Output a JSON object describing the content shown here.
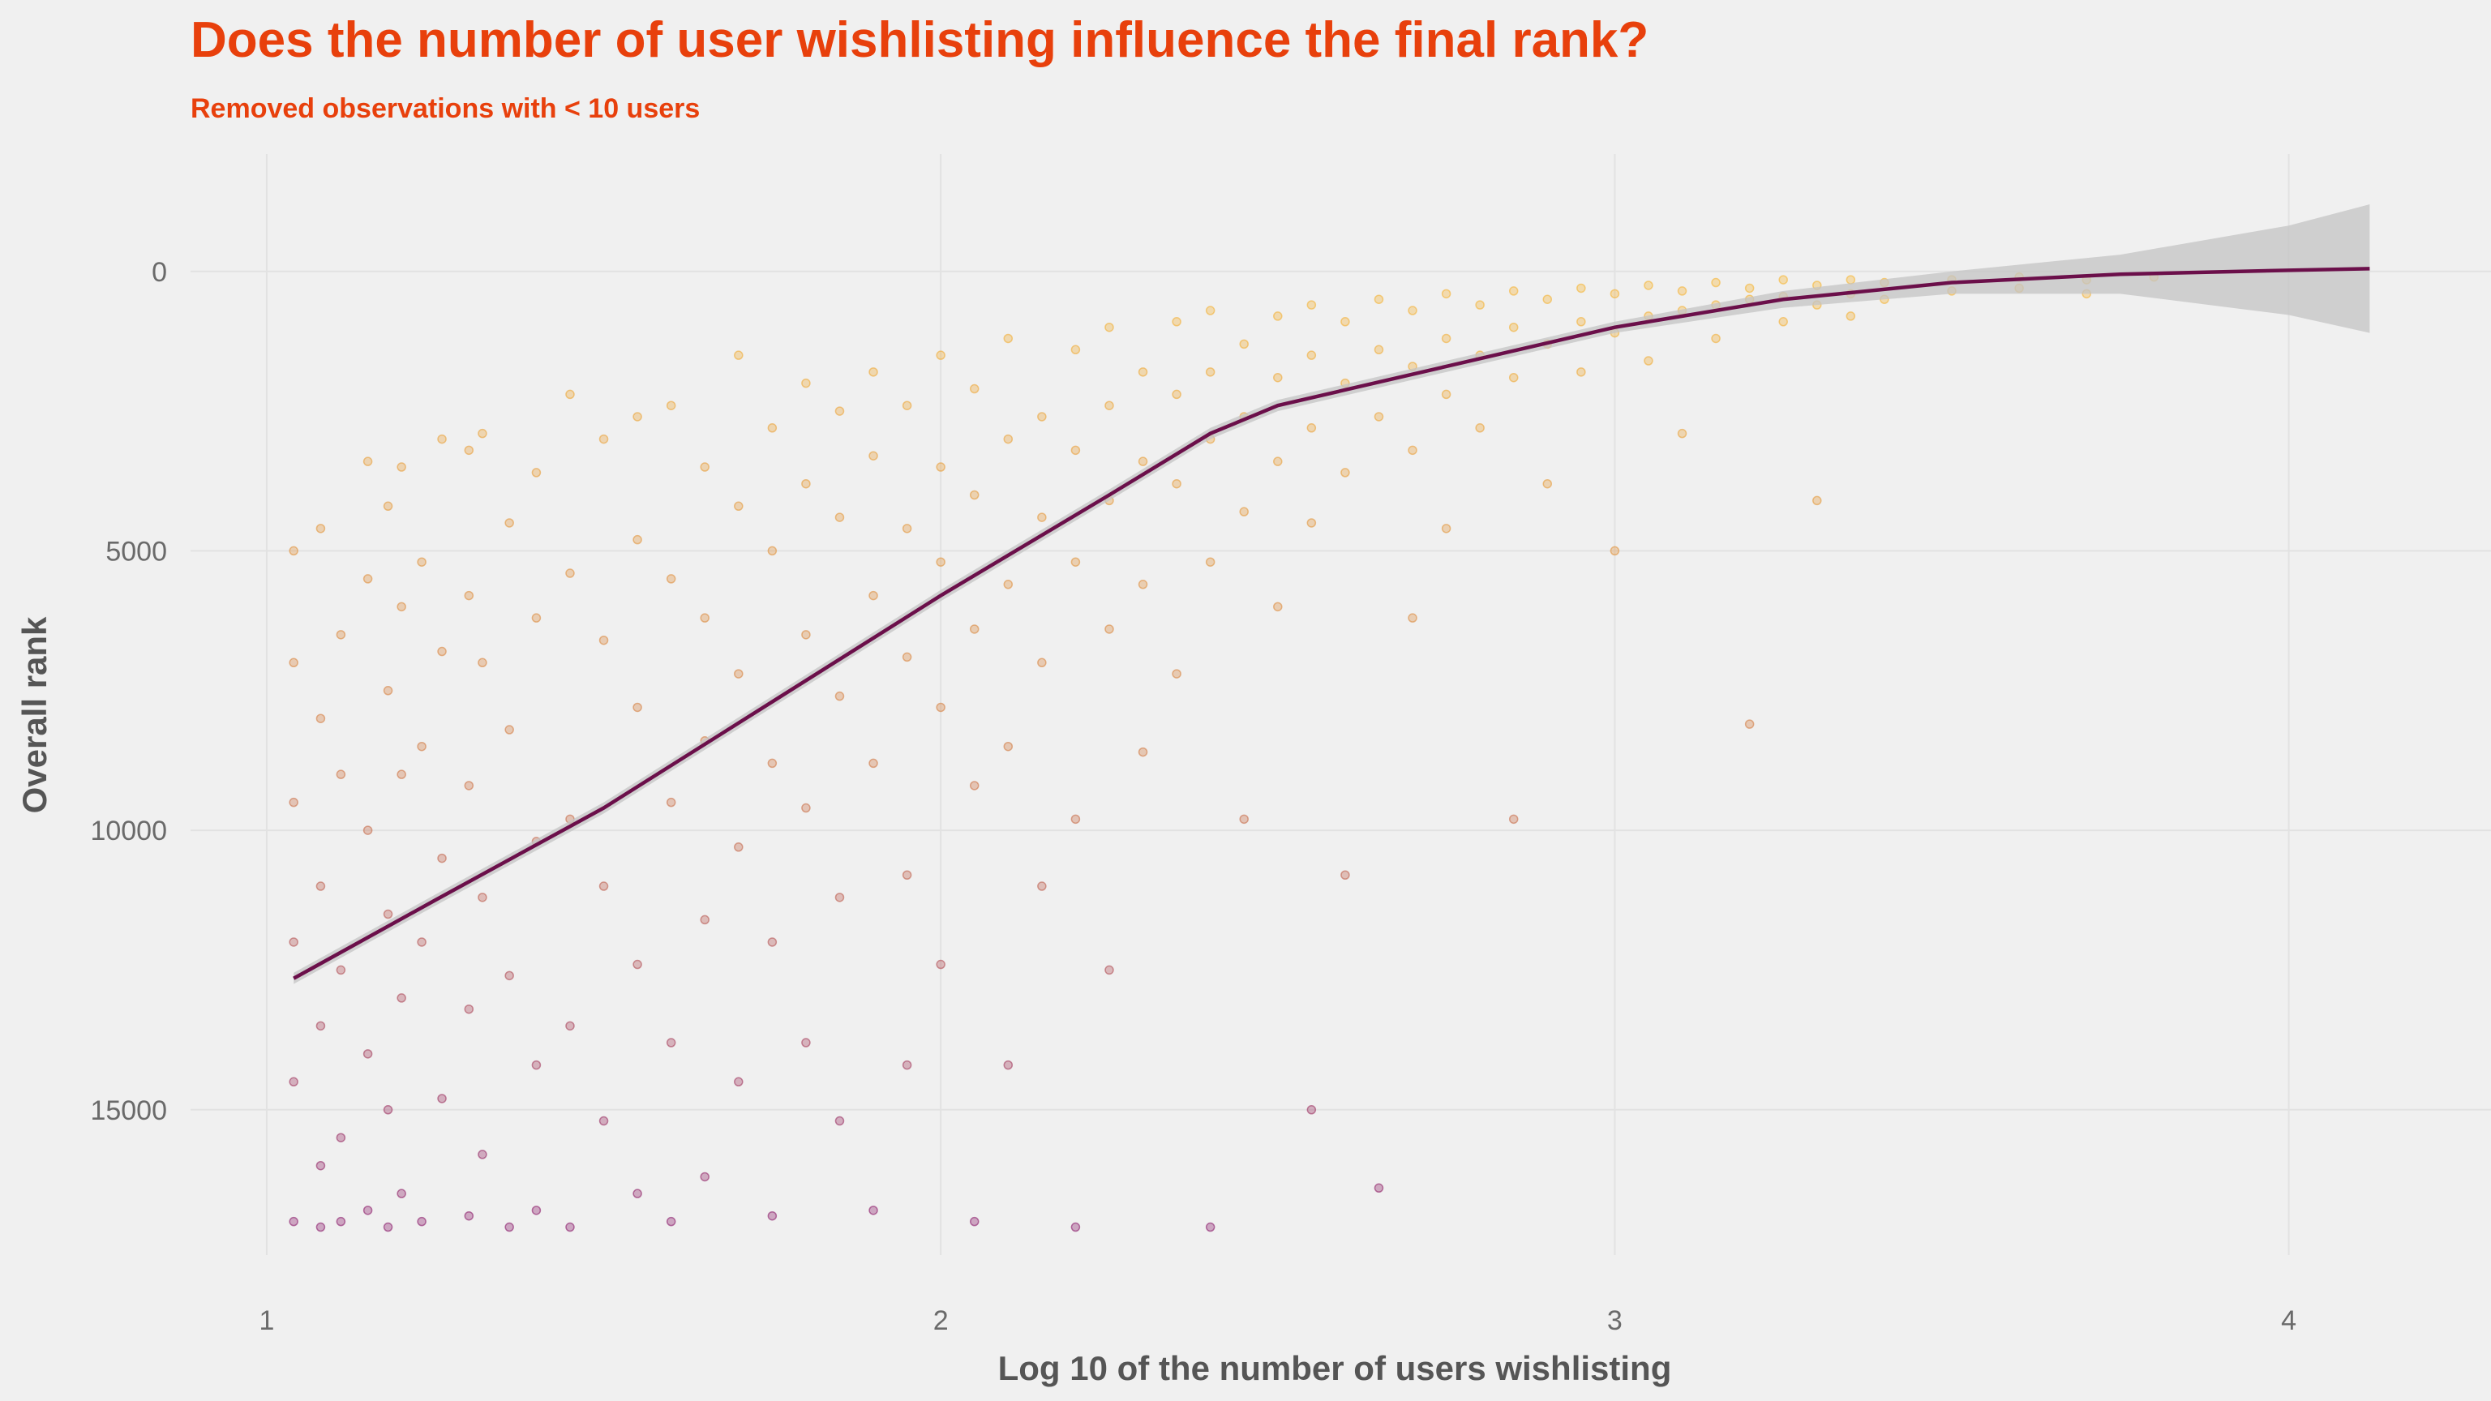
{
  "chart_data": {
    "type": "scatter",
    "title": "Does the number of user wishlisting influence the final rank?",
    "subtitle": "Removed observations with < 10 users",
    "x_label": "Log 10 of the number of users wishlisting",
    "y_label": "Overall rank",
    "xlim": [
      0.887,
      4.3
    ],
    "ylim": [
      -2100,
      17600
    ],
    "y_reversed": true,
    "xticks": [
      1,
      2,
      3,
      4
    ],
    "yticks": [
      0,
      5000,
      10000,
      15000
    ],
    "grid": true,
    "color_scale": [
      "#f6b532",
      "#d27a43",
      "#8a1a6b"
    ],
    "x": [
      1.04,
      1.04,
      1.04,
      1.04,
      1.04,
      1.04,
      1.08,
      1.08,
      1.08,
      1.08,
      1.08,
      1.08,
      1.11,
      1.11,
      1.11,
      1.11,
      1.11,
      1.15,
      1.15,
      1.15,
      1.15,
      1.15,
      1.18,
      1.18,
      1.18,
      1.18,
      1.18,
      1.2,
      1.2,
      1.2,
      1.2,
      1.2,
      1.23,
      1.23,
      1.23,
      1.23,
      1.26,
      1.26,
      1.26,
      1.26,
      1.3,
      1.3,
      1.3,
      1.3,
      1.3,
      1.32,
      1.32,
      1.32,
      1.32,
      1.36,
      1.36,
      1.36,
      1.36,
      1.4,
      1.4,
      1.4,
      1.4,
      1.4,
      1.45,
      1.45,
      1.45,
      1.45,
      1.45,
      1.5,
      1.5,
      1.5,
      1.5,
      1.55,
      1.55,
      1.55,
      1.55,
      1.55,
      1.6,
      1.6,
      1.6,
      1.6,
      1.6,
      1.65,
      1.65,
      1.65,
      1.65,
      1.65,
      1.7,
      1.7,
      1.7,
      1.7,
      1.7,
      1.75,
      1.75,
      1.75,
      1.75,
      1.75,
      1.8,
      1.8,
      1.8,
      1.8,
      1.8,
      1.85,
      1.85,
      1.85,
      1.85,
      1.85,
      1.9,
      1.9,
      1.9,
      1.9,
      1.9,
      1.95,
      1.95,
      1.95,
      1.95,
      1.95,
      2.0,
      2.0,
      2.0,
      2.0,
      2.0,
      2.05,
      2.05,
      2.05,
      2.05,
      2.05,
      2.1,
      2.1,
      2.1,
      2.1,
      2.1,
      2.15,
      2.15,
      2.15,
      2.15,
      2.2,
      2.2,
      2.2,
      2.2,
      2.2,
      2.25,
      2.25,
      2.25,
      2.25,
      2.25,
      2.3,
      2.3,
      2.3,
      2.3,
      2.35,
      2.35,
      2.35,
      2.35,
      2.4,
      2.4,
      2.4,
      2.4,
      2.4,
      2.45,
      2.45,
      2.45,
      2.45,
      2.5,
      2.5,
      2.5,
      2.5,
      2.55,
      2.55,
      2.55,
      2.55,
      2.55,
      2.6,
      2.6,
      2.6,
      2.6,
      2.65,
      2.65,
      2.65,
      2.65,
      2.7,
      2.7,
      2.7,
      2.7,
      2.75,
      2.75,
      2.75,
      2.75,
      2.8,
      2.8,
      2.8,
      2.85,
      2.85,
      2.85,
      2.85,
      2.9,
      2.9,
      2.9,
      2.95,
      2.95,
      2.95,
      3.0,
      3.0,
      3.0,
      3.05,
      3.05,
      3.05,
      3.1,
      3.1,
      3.1,
      3.15,
      3.15,
      3.15,
      3.2,
      3.2,
      3.2,
      3.25,
      3.25,
      3.25,
      3.3,
      3.3,
      3.3,
      3.35,
      3.35,
      3.35,
      3.4,
      3.4,
      3.5,
      3.5,
      3.6,
      3.6,
      3.7,
      3.7,
      3.8
    ],
    "values": [
      5000,
      7000,
      9500,
      12000,
      14500,
      17000,
      4600,
      8000,
      11000,
      13500,
      16000,
      17100,
      6500,
      9000,
      12500,
      15500,
      17000,
      3400,
      5500,
      10000,
      14000,
      16800,
      4200,
      7500,
      11500,
      15000,
      17100,
      3500,
      6000,
      9000,
      13000,
      16500,
      5200,
      8500,
      12000,
      17000,
      3000,
      6800,
      10500,
      14800,
      3200,
      5800,
      9200,
      13200,
      16900,
      2900,
      7000,
      11200,
      15800,
      4500,
      8200,
      12600,
      17100,
      3600,
      6200,
      10200,
      14200,
      16800,
      2200,
      5400,
      9800,
      13500,
      17100,
      3000,
      6600,
      11000,
      15200,
      2600,
      4800,
      7800,
      12400,
      16500,
      2400,
      5500,
      9500,
      13800,
      17000,
      3500,
      6200,
      8400,
      11600,
      16200,
      1500,
      4200,
      7200,
      10300,
      14500,
      2800,
      5000,
      8800,
      12000,
      16900,
      2000,
      3800,
      6500,
      9600,
      13800,
      2500,
      4400,
      7600,
      11200,
      15200,
      1800,
      3300,
      5800,
      8800,
      16800,
      2400,
      4600,
      6900,
      10800,
      14200,
      1500,
      3500,
      5200,
      7800,
      12400,
      2100,
      4000,
      6400,
      9200,
      17000,
      1200,
      3000,
      5600,
      8500,
      14200,
      2600,
      4400,
      7000,
      11000,
      1400,
      3200,
      5200,
      9800,
      17100,
      1000,
      2400,
      4100,
      6400,
      12500,
      1800,
      3400,
      5600,
      8600,
      900,
      2200,
      3800,
      7200,
      700,
      1800,
      3000,
      5200,
      17100,
      1300,
      2600,
      4300,
      9800,
      800,
      1900,
      3400,
      6000,
      600,
      1500,
      2800,
      4500,
      15000,
      900,
      2000,
      3600,
      10800,
      500,
      1400,
      2600,
      16400,
      700,
      1700,
      3200,
      6200,
      400,
      1200,
      2200,
      4600,
      600,
      1500,
      2800,
      350,
      1000,
      1900,
      9800,
      500,
      1300,
      3800,
      300,
      900,
      1800,
      400,
      1100,
      5000,
      250,
      800,
      1600,
      350,
      700,
      2900,
      200,
      600,
      1200,
      300,
      500,
      8100,
      150,
      450,
      900,
      250,
      600,
      4100,
      150,
      400,
      800,
      200,
      500,
      150,
      350,
      100,
      300,
      150,
      400,
      100
    ],
    "smooth": {
      "color": "#6b0f4a",
      "band_color": "#c4c4c4",
      "x": [
        1.04,
        1.25,
        1.5,
        1.75,
        2.0,
        2.25,
        2.4,
        2.5,
        2.75,
        3.0,
        3.25,
        3.5,
        3.75,
        4.0,
        4.12
      ],
      "values": [
        12650,
        11250,
        9600,
        7700,
        5800,
        4000,
        2900,
        2400,
        1700,
        1000,
        500,
        200,
        50,
        -20,
        -50
      ],
      "lower": [
        12550,
        11150,
        9500,
        7600,
        5700,
        3900,
        2800,
        2300,
        1600,
        900,
        350,
        0,
        -300,
        -820,
        -1200
      ],
      "upper": [
        12750,
        11350,
        9700,
        7800,
        5900,
        4100,
        3000,
        2500,
        1800,
        1100,
        650,
        400,
        400,
        780,
        1100
      ]
    }
  }
}
